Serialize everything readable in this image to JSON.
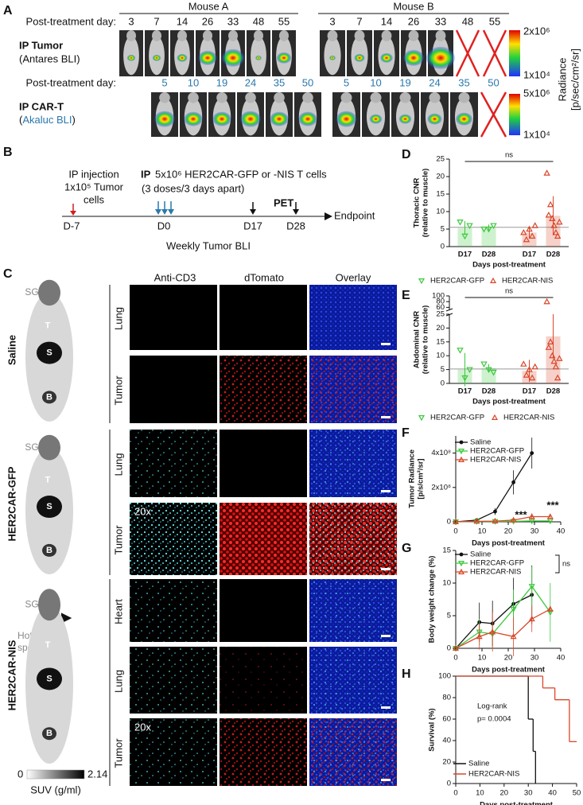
{
  "panel_a": {
    "label": "A",
    "mouse_a": "Mouse A",
    "mouse_b": "Mouse B",
    "tumor_row": {
      "day_label": "Post-treatment day:",
      "title": "IP Tumor",
      "subtitle": "(Antares BLI)",
      "days_a": [
        3,
        7,
        14,
        26,
        33,
        48,
        55
      ],
      "days_b": [
        3,
        7,
        14,
        26,
        33,
        48,
        55
      ]
    },
    "cart_row": {
      "day_label": "Post-treatment day:",
      "title": "IP CAR-T",
      "subtitle_open": "(",
      "subtitle": "Akaluc BLI",
      "subtitle_close": ")",
      "days_a": [
        5,
        10,
        19,
        24,
        35,
        50
      ],
      "days_b": [
        5,
        10,
        19,
        24,
        35,
        50
      ]
    },
    "colorbar_tumor": {
      "max": "2x10⁶",
      "min": "1x10⁴"
    },
    "colorbar_cart": {
      "max": "5x10⁶",
      "min": "1x10⁴"
    },
    "radiance_label": "Radiance",
    "radiance_unit": "[p/sec/cm²/sr]"
  },
  "panel_b": {
    "label": "B",
    "injection": [
      "IP injection",
      "1x10⁵  Tumor",
      "cells"
    ],
    "treatment_ip": "IP",
    "treatment": "5x10⁶ HER2CAR-GFP or -NIS T cells",
    "treatment_note": "(3 doses/3 days apart)",
    "pet": "PET",
    "timepoints": [
      "D-7",
      "D0",
      "D17",
      "D28"
    ],
    "endpoint": "Endpoint",
    "footer": "Weekly Tumor BLI"
  },
  "panel_c": {
    "label": "C",
    "columns": [
      "Anti-CD3",
      "dTomato",
      "Overlay"
    ],
    "groups": [
      {
        "name": "Saline",
        "organs": [
          "SG",
          "T",
          "S",
          "B"
        ],
        "tissues": [
          "Lung",
          "Tumor"
        ]
      },
      {
        "name": "HER2CAR-GFP",
        "organs": [
          "SG",
          "T",
          "S",
          "B"
        ],
        "tissues": [
          "Lung",
          "Tumor"
        ],
        "magnification": "20x"
      },
      {
        "name": "HER2CAR-NIS",
        "organs": [
          "SG",
          "T",
          "S",
          "B"
        ],
        "tissues": [
          "Heart",
          "Lung",
          "Tumor"
        ],
        "magnification": "20x"
      }
    ],
    "hot_spots": [
      "Hot",
      "spots"
    ],
    "colorbar": {
      "min": 0,
      "max": 2.14,
      "label": "SUV (g/ml)"
    }
  },
  "chart_data": [
    {
      "type": "bar",
      "label": "D",
      "ylabel": [
        "Thoracic CNR",
        "(relative to muscle)"
      ],
      "xlabel": "Days post-treatment",
      "categories": [
        "D17",
        "D28",
        "D17",
        "D28"
      ],
      "ylim": [
        0,
        25
      ],
      "yticks": [
        0,
        5,
        10,
        15,
        20,
        25
      ],
      "reference_line": 5.5,
      "annotations": [
        "ns"
      ],
      "series": [
        {
          "name": "HER2CAR-GFP",
          "color": "#3cc83c",
          "marker": "triangle-down",
          "values": [
            5.3,
            5.3,
            null,
            null
          ],
          "errors": [
            2,
            1,
            null,
            null
          ],
          "points": [
            [
              7,
              3,
              6
            ],
            [
              5,
              5,
              6
            ],
            null,
            null
          ]
        },
        {
          "name": "HER2CAR-NIS",
          "color": "#d9472b",
          "marker": "triangle-up",
          "values": [
            null,
            null,
            4,
            8.8
          ],
          "errors": [
            null,
            null,
            1.5,
            5.6
          ],
          "points": [
            null,
            null,
            [
              4,
              2,
              5,
              3,
              6
            ],
            [
              21,
              9,
              12,
              8,
              6,
              4,
              3,
              7
            ]
          ]
        }
      ]
    },
    {
      "type": "bar",
      "label": "E",
      "ylabel": [
        "Abdominal CNR",
        "(relative to muscle)"
      ],
      "xlabel": "Days post-treatment",
      "categories": [
        "D17",
        "D28",
        "D17",
        "D28"
      ],
      "ylim": [
        0,
        25
      ],
      "yticks": [
        0,
        5,
        10,
        15,
        20,
        25
      ],
      "ylim_upper": [
        50,
        100
      ],
      "yticks_upper": [
        60,
        80,
        100
      ],
      "reference_line": 5.2,
      "annotations": [
        "ns"
      ],
      "series": [
        {
          "name": "HER2CAR-GFP",
          "color": "#3cc83c",
          "marker": "triangle-down",
          "values": [
            5,
            5.5,
            null,
            null
          ],
          "errors": [
            6,
            1.5,
            null,
            null
          ],
          "points": [
            [
              12,
              2,
              5
            ],
            [
              7,
              5,
              4
            ],
            null,
            null
          ]
        },
        {
          "name": "HER2CAR-NIS",
          "color": "#d9472b",
          "marker": "triangle-up",
          "values": [
            null,
            null,
            4.5,
            17
          ],
          "errors": [
            null,
            null,
            4,
            8
          ],
          "points": [
            null,
            null,
            [
              7,
              3,
              5,
              2,
              6
            ],
            [
              80,
              13,
              15,
              10,
              8,
              6,
              2,
              9
            ]
          ]
        }
      ]
    },
    {
      "type": "line",
      "label": "F",
      "ylabel": [
        "Tumor Radiance",
        "[p/s/cm²/sr]"
      ],
      "xlabel": "Days post-treatment",
      "xlim": [
        0,
        40
      ],
      "xticks": [
        0,
        10,
        20,
        30,
        40
      ],
      "ylim": [
        0,
        500000000
      ],
      "yticks": [
        0,
        {
          "value": 200000000,
          "label": "2x10⁸"
        },
        {
          "value": 400000000,
          "label": "4x10⁸"
        }
      ],
      "annotations": [
        "***",
        "***"
      ],
      "series": [
        {
          "name": "Saline",
          "color": "#111111",
          "marker": "circle",
          "x": [
            0,
            8,
            15,
            22,
            29
          ],
          "values": [
            0,
            10000000,
            60000000,
            230000000,
            400000000
          ],
          "errors": [
            0,
            5000000,
            20000000,
            70000000,
            90000000
          ]
        },
        {
          "name": "HER2CAR-GFP",
          "color": "#3cc83c",
          "marker": "triangle-down",
          "x": [
            0,
            8,
            15,
            22,
            29,
            36
          ],
          "values": [
            0,
            2000000,
            2000000,
            3000000,
            5000000,
            5000000
          ],
          "errors": [
            0,
            1000000,
            1000000,
            2000000,
            3000000,
            3000000
          ]
        },
        {
          "name": "HER2CAR-NIS",
          "color": "#d9472b",
          "marker": "triangle-up",
          "x": [
            0,
            8,
            15,
            22,
            29,
            36
          ],
          "values": [
            0,
            3000000,
            4000000,
            10000000,
            30000000,
            30000000
          ],
          "errors": [
            0,
            2000000,
            2000000,
            8000000,
            20000000,
            15000000
          ]
        }
      ]
    },
    {
      "type": "line",
      "label": "G",
      "ylabel": [
        "Body weight change (%)"
      ],
      "xlabel": "Days post-treatment",
      "xlim": [
        0,
        40
      ],
      "xticks": [
        0,
        10,
        20,
        30,
        40
      ],
      "ylim": [
        0,
        15
      ],
      "yticks": [
        0,
        5,
        10,
        15
      ],
      "annotations": [
        "ns"
      ],
      "series": [
        {
          "name": "Saline",
          "color": "#111111",
          "marker": "circle",
          "x": [
            0,
            9,
            14,
            22,
            29
          ],
          "values": [
            0,
            4,
            3.8,
            6.8,
            8.2
          ],
          "errors": [
            0,
            3,
            3.5,
            4,
            4.5
          ]
        },
        {
          "name": "HER2CAR-GFP",
          "color": "#3cc83c",
          "marker": "triangle-down",
          "x": [
            0,
            9,
            14,
            22,
            29,
            36
          ],
          "values": [
            0,
            2.5,
            2.2,
            6,
            9.5,
            5.5
          ],
          "errors": [
            0,
            2,
            2,
            3,
            3,
            4.5
          ]
        },
        {
          "name": "HER2CAR-NIS",
          "color": "#d9472b",
          "marker": "triangle-up",
          "x": [
            0,
            9,
            14,
            22,
            29,
            36
          ],
          "values": [
            0,
            1.8,
            2.5,
            1.8,
            4.5,
            6
          ],
          "errors": [
            0,
            2,
            3,
            3,
            2,
            0.5
          ]
        }
      ]
    },
    {
      "type": "step",
      "label": "H",
      "ylabel": [
        "Survival (%)"
      ],
      "xlabel": "Days post-treatment",
      "xlim": [
        0,
        50
      ],
      "xticks": [
        0,
        10,
        20,
        30,
        40,
        50
      ],
      "ylim": [
        0,
        100
      ],
      "yticks": [
        0,
        20,
        40,
        60,
        80,
        100
      ],
      "annotations": [
        "Log-rank",
        "p= 0.0004"
      ],
      "series": [
        {
          "name": "Saline",
          "color": "#111111",
          "x": [
            0,
            30,
            32,
            33
          ],
          "values": [
            100,
            60,
            30,
            0
          ]
        },
        {
          "name": "HER2CAR-NIS",
          "color": "#d9472b",
          "x": [
            0,
            36,
            41,
            47,
            50
          ],
          "values": [
            100,
            89,
            78,
            39,
            39
          ]
        }
      ]
    }
  ]
}
